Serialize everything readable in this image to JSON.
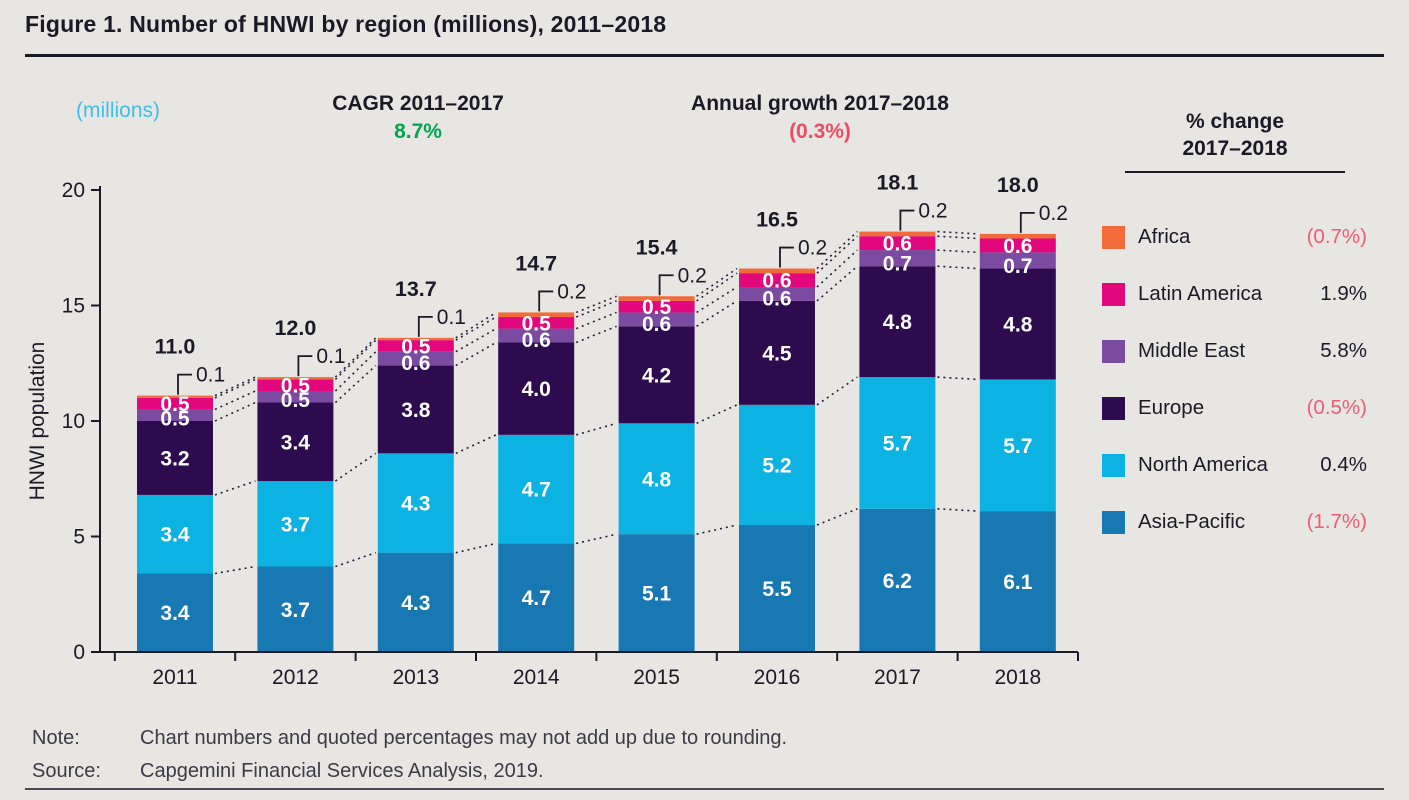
{
  "title": "Figure 1. Number of HNWI by region (millions), 2011–2018",
  "header": {
    "units_label": "(millions)",
    "cagr_label": "CAGR 2011–2017",
    "cagr_value": "8.7%",
    "growth_label": "Annual growth 2017–2018",
    "growth_value": "(0.3%)"
  },
  "legend": {
    "title_line1": "% change",
    "title_line2": "2017–2018",
    "items": [
      {
        "label": "Africa",
        "value": "(0.7%)",
        "negative": true,
        "color": "#F26B3A"
      },
      {
        "label": "Latin America",
        "value": "1.9%",
        "negative": false,
        "color": "#E2077D"
      },
      {
        "label": "Middle East",
        "value": "5.8%",
        "negative": false,
        "color": "#7B4BA1"
      },
      {
        "label": "Europe",
        "value": "(0.5%)",
        "negative": true,
        "color": "#2D0B4E"
      },
      {
        "label": "North America",
        "value": "0.4%",
        "negative": false,
        "color": "#0CB2E2"
      },
      {
        "label": "Asia-Pacific",
        "value": "(1.7%)",
        "negative": true,
        "color": "#1878B2"
      }
    ]
  },
  "chart_data": {
    "type": "bar",
    "stacked": true,
    "title": "Number of HNWI by region (millions), 2011–2018",
    "xlabel": "",
    "ylabel": "HNWI population",
    "ylim": [
      0,
      20
    ],
    "yticks": [
      0,
      5,
      10,
      15,
      20
    ],
    "grid": false,
    "legend_position": "right",
    "categories": [
      "2011",
      "2012",
      "2013",
      "2014",
      "2015",
      "2016",
      "2017",
      "2018"
    ],
    "series": [
      {
        "name": "Asia-Pacific",
        "color": "#1878B2",
        "values": [
          3.4,
          3.7,
          4.3,
          4.7,
          5.1,
          5.5,
          6.2,
          6.1
        ]
      },
      {
        "name": "North America",
        "color": "#0CB2E2",
        "values": [
          3.4,
          3.7,
          4.3,
          4.7,
          4.8,
          5.2,
          5.7,
          5.7
        ]
      },
      {
        "name": "Europe",
        "color": "#2D0B4E",
        "values": [
          3.2,
          3.4,
          3.8,
          4.0,
          4.2,
          4.5,
          4.8,
          4.8
        ]
      },
      {
        "name": "Middle East",
        "color": "#7B4BA1",
        "values": [
          0.5,
          0.5,
          0.6,
          0.6,
          0.6,
          0.6,
          0.7,
          0.7
        ]
      },
      {
        "name": "Latin America",
        "color": "#E2077D",
        "values": [
          0.5,
          0.5,
          0.5,
          0.5,
          0.5,
          0.6,
          0.6,
          0.6
        ]
      },
      {
        "name": "Africa",
        "color": "#F26B3A",
        "values": [
          0.1,
          0.1,
          0.1,
          0.2,
          0.2,
          0.2,
          0.2,
          0.2
        ]
      }
    ],
    "totals": [
      "11.0",
      "12.0",
      "13.7",
      "14.7",
      "15.4",
      "16.5",
      "18.1",
      "18.0"
    ],
    "annotations": "Africa values shown as callouts above each bar; dotted lines connect segment boundaries between adjacent bars"
  },
  "note": {
    "label": "Note:",
    "text": "Chart numbers and quoted percentages may not add up due to rounding."
  },
  "source": {
    "label": "Source:",
    "text": "Capgemini Financial Services Analysis, 2019."
  },
  "colors": {
    "background": "#E7E6E3",
    "text_dark": "#1A1A26",
    "positive_green": "#00A651",
    "negative_red": "#EF4B60",
    "units_cyan": "#3FBEE8",
    "dotted_line": "#20203A",
    "segment_label": "#FFFFFF"
  }
}
